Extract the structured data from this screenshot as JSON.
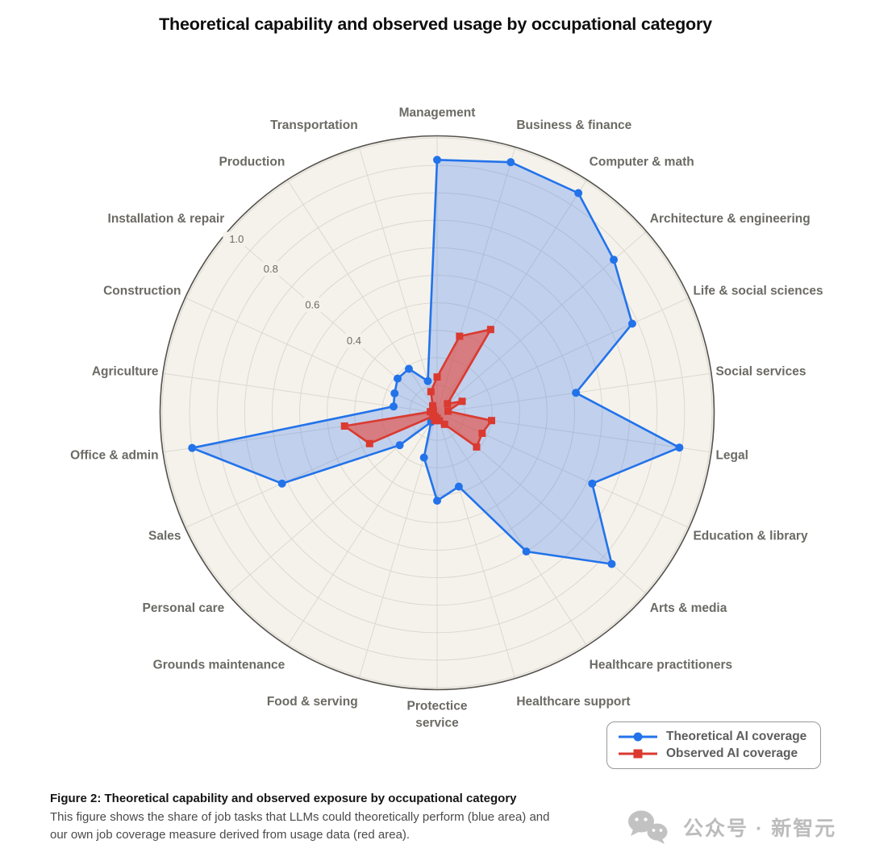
{
  "title": "Theoretical capability and observed usage by occupational category",
  "chart_data": {
    "type": "radar",
    "categories": [
      "Management",
      "Business & finance",
      "Computer & math",
      "Architecture & engineering",
      "Life & social sciences",
      "Social services",
      "Legal",
      "Education & library",
      "Arts & media",
      "Healthcare practitioners",
      "Healthcare support",
      "Protectice service",
      "Food & serving",
      "Grounds maintenance",
      "Personal care",
      "Sales",
      "Office & admin",
      "Agriculture",
      "Construction",
      "Installation & repair",
      "Production",
      "Transportation"
    ],
    "wrapped_labels": [
      "Protectice service"
    ],
    "series": [
      {
        "name": "Theoretical AI coverage",
        "marker": "circle",
        "color": "#2273ea",
        "fill_color": "rgba(72,130,234,0.30)",
        "values": [
          0.92,
          0.95,
          0.95,
          0.85,
          0.78,
          0.51,
          0.89,
          0.62,
          0.84,
          0.6,
          0.28,
          0.32,
          0.17,
          0.04,
          0.18,
          0.62,
          0.9,
          0.16,
          0.17,
          0.19,
          0.19,
          0.12
        ]
      },
      {
        "name": "Observed AI coverage",
        "marker": "square",
        "color": "#da3a30",
        "fill_color": "rgba(229,72,62,0.62)",
        "values": [
          0.13,
          0.29,
          0.36,
          0.05,
          0.1,
          0.04,
          0.2,
          0.18,
          0.19,
          0.05,
          0.03,
          0.02,
          0.03,
          0.015,
          0.02,
          0.27,
          0.34,
          0.025,
          0.015,
          0.02,
          0.03,
          0.08
        ]
      }
    ],
    "radial_ticks": [
      "0.4",
      "0.6",
      "0.8",
      "1.0"
    ],
    "radial_range": [
      0,
      1.0
    ],
    "grid_step": 0.1,
    "tick_axis_category": "Installation & repair",
    "colors": {
      "plot_background": "#f5f2ec",
      "grid_line": "#dcd8d0",
      "outer_circle": "#54524d",
      "category_label": "#6b6a64",
      "tick_label": "#6b6a64"
    }
  },
  "legend": {
    "items": [
      {
        "label": "Theoretical AI coverage",
        "color": "#2273ea",
        "marker": "circle"
      },
      {
        "label": "Observed AI coverage",
        "color": "#da3a30",
        "marker": "square"
      }
    ]
  },
  "caption": {
    "heading": "Figure 2: Theoretical capability and observed exposure by occupational category",
    "body": "This figure shows the share of job tasks that LLMs could theoretically perform (blue area) and our own job coverage measure derived from usage data (red area)."
  },
  "watermark": {
    "text": "公众号 · 新智元"
  }
}
